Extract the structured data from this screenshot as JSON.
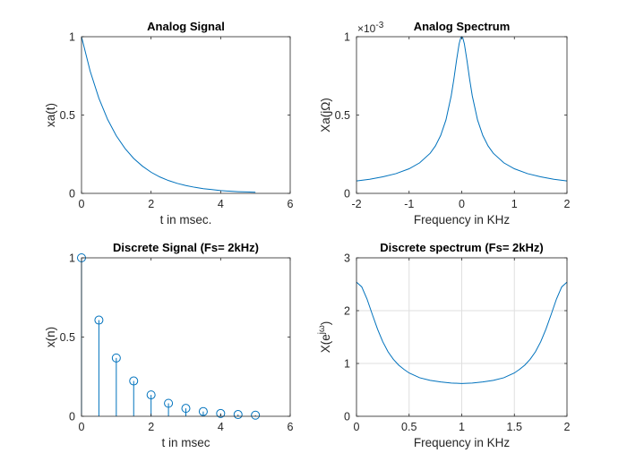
{
  "chart_data": [
    {
      "type": "line",
      "title": "Analog Signal",
      "xlabel": "t in msec.",
      "ylabel": "xa(t)",
      "xlim": [
        0,
        6
      ],
      "ylim": [
        0,
        1
      ],
      "xticks": [
        "0",
        "2",
        "4",
        "6"
      ],
      "yticks": [
        "0",
        "0.5",
        "1"
      ],
      "grid": false,
      "series_color": "#0072BD",
      "series": [
        {
          "x": [
            0,
            0.25,
            0.5,
            0.75,
            1,
            1.25,
            1.5,
            1.75,
            2,
            2.25,
            2.5,
            2.75,
            3,
            3.25,
            3.5,
            3.75,
            4,
            4.25,
            4.5,
            4.75,
            5
          ],
          "values": [
            1.0,
            0.779,
            0.607,
            0.472,
            0.368,
            0.287,
            0.223,
            0.174,
            0.135,
            0.105,
            0.082,
            0.064,
            0.05,
            0.039,
            0.03,
            0.024,
            0.018,
            0.014,
            0.011,
            0.009,
            0.007
          ]
        }
      ]
    },
    {
      "type": "line",
      "title": "Analog Spectrum",
      "exponent_label": "×10",
      "exponent_power": "-3",
      "xlabel": "Frequency in KHz",
      "ylabel": "Xa(jΩ)",
      "xlim": [
        -2,
        2
      ],
      "ylim": [
        0,
        1
      ],
      "xticks": [
        "-2",
        "-1",
        "0",
        "1",
        "2"
      ],
      "yticks": [
        "0",
        "0.5",
        "1"
      ],
      "grid": false,
      "series_color": "#0072BD",
      "series": [
        {
          "x": [
            -2,
            -1.75,
            -1.5,
            -1.25,
            -1,
            -0.8,
            -0.6,
            -0.5,
            -0.4,
            -0.3,
            -0.2,
            -0.15,
            -0.1,
            -0.05,
            -0.02,
            0,
            0.02,
            0.05,
            0.1,
            0.15,
            0.2,
            0.3,
            0.4,
            0.5,
            0.6,
            0.8,
            1,
            1.25,
            1.5,
            1.75,
            2
          ],
          "values": [
            0.079,
            0.09,
            0.106,
            0.126,
            0.157,
            0.195,
            0.256,
            0.303,
            0.37,
            0.469,
            0.623,
            0.728,
            0.847,
            0.954,
            0.992,
            1.0,
            0.992,
            0.954,
            0.847,
            0.728,
            0.623,
            0.469,
            0.37,
            0.303,
            0.256,
            0.195,
            0.157,
            0.126,
            0.106,
            0.09,
            0.079
          ]
        }
      ]
    },
    {
      "type": "stem",
      "title": "Discrete Signal (Fs= 2kHz)",
      "xlabel": "t in msec",
      "ylabel": "x(n)",
      "xlim": [
        0,
        6
      ],
      "ylim": [
        0,
        1
      ],
      "xticks": [
        "0",
        "2",
        "4",
        "6"
      ],
      "yticks": [
        "0",
        "0.5",
        "1"
      ],
      "grid": false,
      "series_color": "#0072BD",
      "series": [
        {
          "x": [
            0,
            0.5,
            1,
            1.5,
            2,
            2.5,
            3,
            3.5,
            4,
            4.5,
            5
          ],
          "values": [
            1.0,
            0.607,
            0.368,
            0.223,
            0.135,
            0.082,
            0.05,
            0.03,
            0.018,
            0.011,
            0.007
          ]
        }
      ]
    },
    {
      "type": "line",
      "title": "Discrete spectrum (Fs= 2kHz)",
      "xlabel": "Frequency in KHz",
      "ylabel": "X(e",
      "ylabel_sup": "jω",
      "ylabel_close": ")",
      "xlim": [
        0,
        2
      ],
      "ylim": [
        0,
        3
      ],
      "xticks": [
        "0",
        "0.5",
        "1",
        "1.5",
        "2"
      ],
      "yticks": [
        "0",
        "1",
        "2",
        "3"
      ],
      "grid": true,
      "series_color": "#0072BD",
      "series": [
        {
          "x": [
            0,
            0.05,
            0.1,
            0.15,
            0.2,
            0.25,
            0.3,
            0.35,
            0.4,
            0.45,
            0.5,
            0.6,
            0.7,
            0.8,
            0.9,
            1.0,
            1.1,
            1.2,
            1.3,
            1.4,
            1.5,
            1.55,
            1.6,
            1.65,
            1.7,
            1.75,
            1.8,
            1.85,
            1.9,
            1.95,
            2.0
          ],
          "values": [
            2.54,
            2.45,
            2.22,
            1.93,
            1.65,
            1.41,
            1.22,
            1.08,
            0.97,
            0.89,
            0.82,
            0.73,
            0.68,
            0.65,
            0.63,
            0.62,
            0.63,
            0.65,
            0.68,
            0.73,
            0.82,
            0.89,
            0.97,
            1.08,
            1.22,
            1.41,
            1.65,
            1.93,
            2.22,
            2.45,
            2.54
          ]
        }
      ]
    }
  ]
}
